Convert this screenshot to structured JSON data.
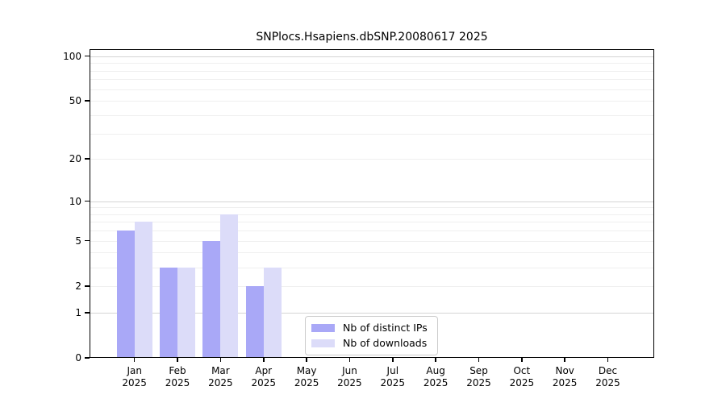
{
  "chart_data": {
    "type": "bar",
    "title": "SNPlocs.Hsapiens.dbSNP.20080617 2025",
    "xlabel": "",
    "ylabel": "",
    "categories": [
      "Jan",
      "Feb",
      "Mar",
      "Apr",
      "May",
      "Jun",
      "Jul",
      "Aug",
      "Sep",
      "Oct",
      "Nov",
      "Dec"
    ],
    "category_year": "2025",
    "series": [
      {
        "name": "Nb of distinct IPs",
        "color": "#a9a8f7",
        "values": [
          6,
          3,
          5,
          2,
          0,
          0,
          0,
          0,
          0,
          0,
          0,
          0
        ]
      },
      {
        "name": "Nb of downloads",
        "color": "#dcdcf9",
        "values": [
          7,
          3,
          8,
          3,
          0,
          0,
          0,
          0,
          0,
          0,
          0,
          0
        ]
      }
    ],
    "yscale": "log1p",
    "ylim": [
      0,
      112
    ],
    "yticks": [
      0,
      1,
      2,
      5,
      10,
      20,
      50,
      100
    ],
    "grid_minor": [
      2,
      3,
      4,
      5,
      6,
      7,
      8,
      9,
      20,
      30,
      40,
      50,
      60,
      70,
      80,
      90
    ],
    "grid_major": [
      1,
      10,
      100
    ],
    "grid": true,
    "legend_position": "bottom-center"
  }
}
